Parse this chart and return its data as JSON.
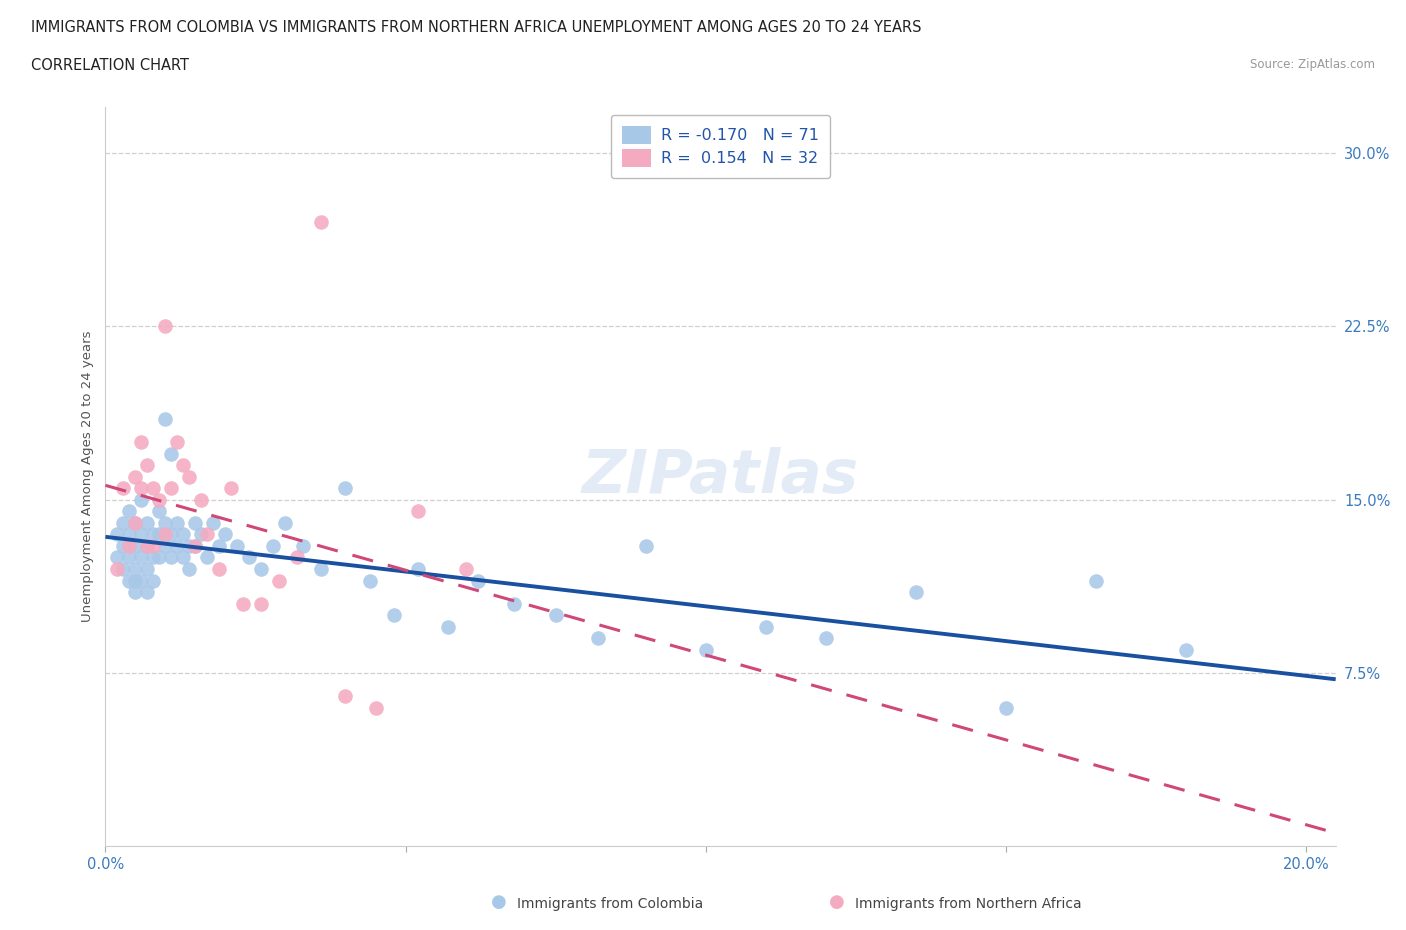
{
  "title_line1": "IMMIGRANTS FROM COLOMBIA VS IMMIGRANTS FROM NORTHERN AFRICA UNEMPLOYMENT AMONG AGES 20 TO 24 YEARS",
  "title_line2": "CORRELATION CHART",
  "source": "Source: ZipAtlas.com",
  "ylabel": "Unemployment Among Ages 20 to 24 years",
  "xlim": [
    0.0,
    0.205
  ],
  "ylim": [
    0.0,
    0.32
  ],
  "ytick_positions": [
    0.075,
    0.15,
    0.225,
    0.3
  ],
  "ytick_labels": [
    "7.5%",
    "15.0%",
    "22.5%",
    "30.0%"
  ],
  "R_colombia": -0.17,
  "N_colombia": 71,
  "R_n_africa": 0.154,
  "N_n_africa": 32,
  "color_colombia": "#a8c8e8",
  "color_n_africa": "#f4aac0",
  "trendline_colombia_color": "#1a50a0",
  "trendline_n_africa_color": "#d04878",
  "watermark": "ZIPatlas",
  "colombia_x": [
    0.002,
    0.002,
    0.003,
    0.003,
    0.003,
    0.004,
    0.004,
    0.004,
    0.004,
    0.005,
    0.005,
    0.005,
    0.005,
    0.005,
    0.006,
    0.006,
    0.006,
    0.006,
    0.007,
    0.007,
    0.007,
    0.007,
    0.008,
    0.008,
    0.008,
    0.009,
    0.009,
    0.009,
    0.01,
    0.01,
    0.01,
    0.011,
    0.011,
    0.011,
    0.012,
    0.012,
    0.013,
    0.013,
    0.014,
    0.014,
    0.015,
    0.015,
    0.016,
    0.017,
    0.018,
    0.019,
    0.02,
    0.022,
    0.024,
    0.026,
    0.028,
    0.03,
    0.033,
    0.036,
    0.04,
    0.044,
    0.048,
    0.052,
    0.057,
    0.062,
    0.068,
    0.075,
    0.082,
    0.09,
    0.1,
    0.11,
    0.12,
    0.135,
    0.15,
    0.165,
    0.18
  ],
  "colombia_y": [
    0.135,
    0.125,
    0.14,
    0.13,
    0.12,
    0.145,
    0.135,
    0.125,
    0.115,
    0.14,
    0.13,
    0.12,
    0.115,
    0.11,
    0.15,
    0.135,
    0.125,
    0.115,
    0.14,
    0.13,
    0.12,
    0.11,
    0.135,
    0.125,
    0.115,
    0.145,
    0.135,
    0.125,
    0.185,
    0.14,
    0.13,
    0.17,
    0.135,
    0.125,
    0.14,
    0.13,
    0.135,
    0.125,
    0.13,
    0.12,
    0.14,
    0.13,
    0.135,
    0.125,
    0.14,
    0.13,
    0.135,
    0.13,
    0.125,
    0.12,
    0.13,
    0.14,
    0.13,
    0.12,
    0.155,
    0.115,
    0.1,
    0.12,
    0.095,
    0.115,
    0.105,
    0.1,
    0.09,
    0.13,
    0.085,
    0.095,
    0.09,
    0.11,
    0.06,
    0.115,
    0.085
  ],
  "n_africa_x": [
    0.002,
    0.003,
    0.004,
    0.005,
    0.005,
    0.006,
    0.006,
    0.007,
    0.007,
    0.008,
    0.008,
    0.009,
    0.01,
    0.01,
    0.011,
    0.012,
    0.013,
    0.014,
    0.015,
    0.016,
    0.017,
    0.019,
    0.021,
    0.023,
    0.026,
    0.029,
    0.032,
    0.036,
    0.04,
    0.045,
    0.052,
    0.06
  ],
  "n_africa_y": [
    0.12,
    0.155,
    0.13,
    0.16,
    0.14,
    0.175,
    0.155,
    0.165,
    0.13,
    0.155,
    0.13,
    0.15,
    0.225,
    0.135,
    0.155,
    0.175,
    0.165,
    0.16,
    0.13,
    0.15,
    0.135,
    0.12,
    0.155,
    0.105,
    0.105,
    0.115,
    0.125,
    0.27,
    0.065,
    0.06,
    0.145,
    0.12
  ]
}
